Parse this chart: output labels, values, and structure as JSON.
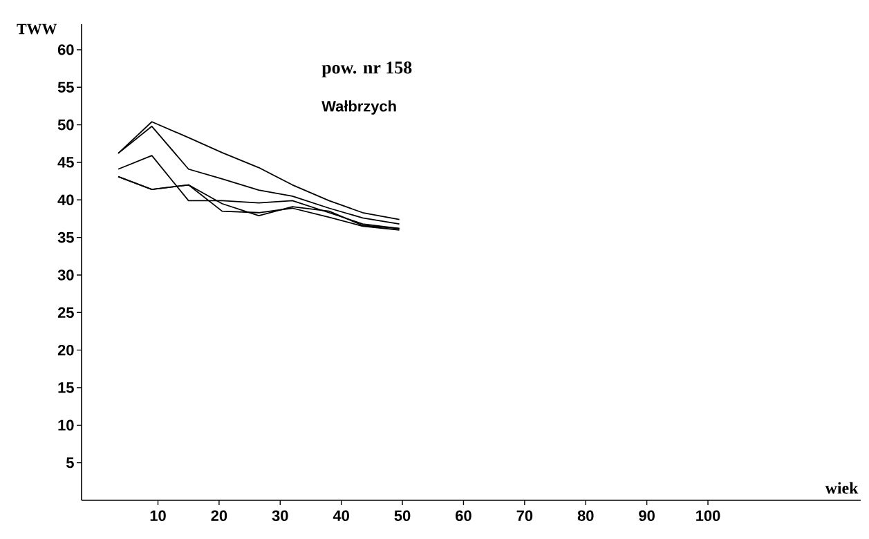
{
  "chart_data": {
    "type": "line",
    "xlabel": "wiek",
    "ylabel": "TWW",
    "annotations": [
      "pow. nr  158",
      "Wałbrzych"
    ],
    "x": [
      3.5,
      9,
      15,
      20.5,
      26.5,
      32,
      38,
      43.5,
      49.5
    ],
    "series": [
      {
        "color": "#000000",
        "values": [
          46.2,
          50.4,
          48.3,
          46.3,
          44.3,
          42.0,
          39.9,
          38.3,
          37.4
        ]
      },
      {
        "color": "#000000",
        "values": [
          46.2,
          49.8,
          44.1,
          42.8,
          41.3,
          40.5,
          38.9,
          37.6,
          36.8
        ]
      },
      {
        "color": "#000000",
        "values": [
          44.1,
          45.9,
          39.9,
          39.9,
          39.6,
          39.9,
          38.3,
          36.8,
          36.2
        ]
      },
      {
        "color": "#000000",
        "values": [
          43.1,
          41.4,
          42.0,
          38.5,
          38.3,
          38.9,
          37.7,
          36.5,
          36.0
        ]
      },
      {
        "color": "#000000",
        "values": [
          43.1,
          41.4,
          42.0,
          39.5,
          37.9,
          39.1,
          38.5,
          36.6,
          36.2
        ]
      }
    ],
    "xlim": [
      -2.5,
      125
    ],
    "ylim": [
      0,
      63.4
    ],
    "xticks": [
      10,
      20,
      30,
      40,
      50,
      60,
      70,
      80,
      90,
      100
    ],
    "yticks": [
      5,
      10,
      15,
      20,
      25,
      30,
      35,
      40,
      45,
      50,
      55,
      60
    ],
    "grid": false,
    "marker": "none",
    "line_style": "solid"
  }
}
